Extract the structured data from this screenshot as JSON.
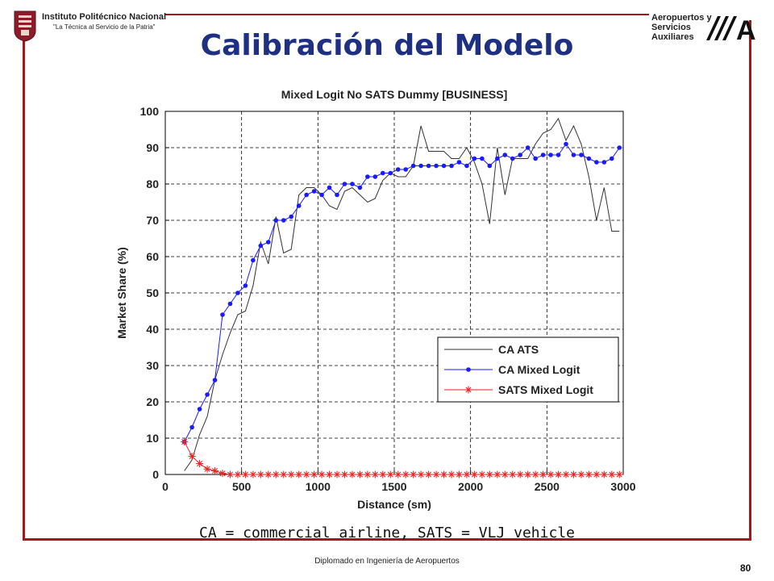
{
  "header": {
    "institution_name": "Instituto Politécnico Nacional",
    "institution_motto": "\"La Técnica al Servicio de la Patria\"",
    "asa_lines": [
      "Aeropuertos y",
      "Servicios",
      "Auxiliares"
    ],
    "asa_logo_letter": "A"
  },
  "slide": {
    "title": "Calibración del Modelo",
    "caption": "CA = commercial airline, SATS = VLJ vehicle",
    "footer": "Diplomado en Ingeniería de Aeropuertos",
    "page_number": "80"
  },
  "colors": {
    "frame": "#a01a1a",
    "title": "#1f2f82",
    "ca_ats": "#333333",
    "ca_mixed_logit": "#1a1aff",
    "sats_mixed_logit": "#ee2222"
  },
  "chart_data": {
    "type": "line",
    "title": "Mixed Logit No SATS Dummy [BUSINESS]",
    "xlabel": "Distance (sm)",
    "ylabel": "Market Share (%)",
    "xlim": [
      0,
      3000
    ],
    "ylim": [
      0,
      100
    ],
    "xticks": [
      0,
      500,
      1000,
      1500,
      2000,
      2500,
      3000
    ],
    "yticks": [
      0,
      10,
      20,
      30,
      40,
      50,
      60,
      70,
      80,
      90,
      100
    ],
    "grid": true,
    "legend_position": "bottom-right",
    "series": [
      {
        "name": "CA ATS",
        "marker": "none",
        "color": "#333333",
        "x": [
          125,
          175,
          225,
          275,
          325,
          375,
          425,
          475,
          525,
          575,
          625,
          675,
          725,
          775,
          825,
          875,
          925,
          975,
          1025,
          1075,
          1125,
          1175,
          1225,
          1275,
          1325,
          1375,
          1425,
          1475,
          1525,
          1575,
          1625,
          1675,
          1725,
          1775,
          1825,
          1875,
          1925,
          1975,
          2025,
          2075,
          2125,
          2175,
          2225,
          2275,
          2325,
          2375,
          2425,
          2475,
          2525,
          2575,
          2625,
          2675,
          2725,
          2775,
          2825,
          2875,
          2925,
          2975
        ],
        "y": [
          1,
          4,
          11,
          16,
          26,
          33,
          39,
          44,
          45,
          52,
          64,
          58,
          71,
          61,
          62,
          77,
          79,
          79,
          77,
          74,
          73,
          78,
          79,
          77,
          75,
          76,
          81,
          83,
          82,
          82,
          85,
          96,
          89,
          89,
          89,
          87,
          87,
          90,
          86,
          80,
          69,
          90,
          77,
          87,
          87,
          87,
          91,
          94,
          95,
          98,
          92,
          96,
          91,
          82,
          70,
          79,
          67,
          67
        ]
      },
      {
        "name": "CA Mixed Logit",
        "marker": "dot",
        "color": "#1a1aff",
        "x": [
          125,
          175,
          225,
          275,
          325,
          375,
          425,
          475,
          525,
          575,
          625,
          675,
          725,
          775,
          825,
          875,
          925,
          975,
          1025,
          1075,
          1125,
          1175,
          1225,
          1275,
          1325,
          1375,
          1425,
          1475,
          1525,
          1575,
          1625,
          1675,
          1725,
          1775,
          1825,
          1875,
          1925,
          1975,
          2025,
          2075,
          2125,
          2175,
          2225,
          2275,
          2325,
          2375,
          2425,
          2475,
          2525,
          2575,
          2625,
          2675,
          2725,
          2775,
          2825,
          2875,
          2925,
          2975
        ],
        "y": [
          9,
          13,
          18,
          22,
          26,
          44,
          47,
          50,
          52,
          59,
          63,
          64,
          70,
          70,
          71,
          74,
          77,
          78,
          77,
          79,
          77,
          80,
          80,
          79,
          82,
          82,
          83,
          83,
          84,
          84,
          85,
          85,
          85,
          85,
          85,
          85,
          86,
          85,
          87,
          87,
          85,
          87,
          88,
          87,
          88,
          90,
          87,
          88,
          88,
          88,
          91,
          88,
          88,
          87,
          86,
          86,
          87,
          90
        ]
      },
      {
        "name": "SATS Mixed Logit",
        "marker": "asterisk",
        "color": "#ee2222",
        "x": [
          125,
          175,
          225,
          275,
          325,
          375,
          425,
          475,
          525,
          575,
          625,
          675,
          725,
          775,
          825,
          875,
          925,
          975,
          1025,
          1075,
          1125,
          1175,
          1225,
          1275,
          1325,
          1375,
          1425,
          1475,
          1525,
          1575,
          1625,
          1675,
          1725,
          1775,
          1825,
          1875,
          1925,
          1975,
          2025,
          2075,
          2125,
          2175,
          2225,
          2275,
          2325,
          2375,
          2425,
          2475,
          2525,
          2575,
          2625,
          2675,
          2725,
          2775,
          2825,
          2875,
          2925,
          2975
        ],
        "y": [
          9,
          5,
          3,
          1.5,
          1,
          0.3,
          0,
          0,
          0,
          0,
          0,
          0,
          0,
          0,
          0,
          0,
          0,
          0,
          0,
          0,
          0,
          0,
          0,
          0,
          0,
          0,
          0,
          0,
          0,
          0,
          0,
          0,
          0,
          0,
          0,
          0,
          0,
          0,
          0,
          0,
          0,
          0,
          0,
          0,
          0,
          0,
          0,
          0,
          0,
          0,
          0,
          0,
          0,
          0,
          0,
          0,
          0,
          0
        ]
      }
    ]
  }
}
